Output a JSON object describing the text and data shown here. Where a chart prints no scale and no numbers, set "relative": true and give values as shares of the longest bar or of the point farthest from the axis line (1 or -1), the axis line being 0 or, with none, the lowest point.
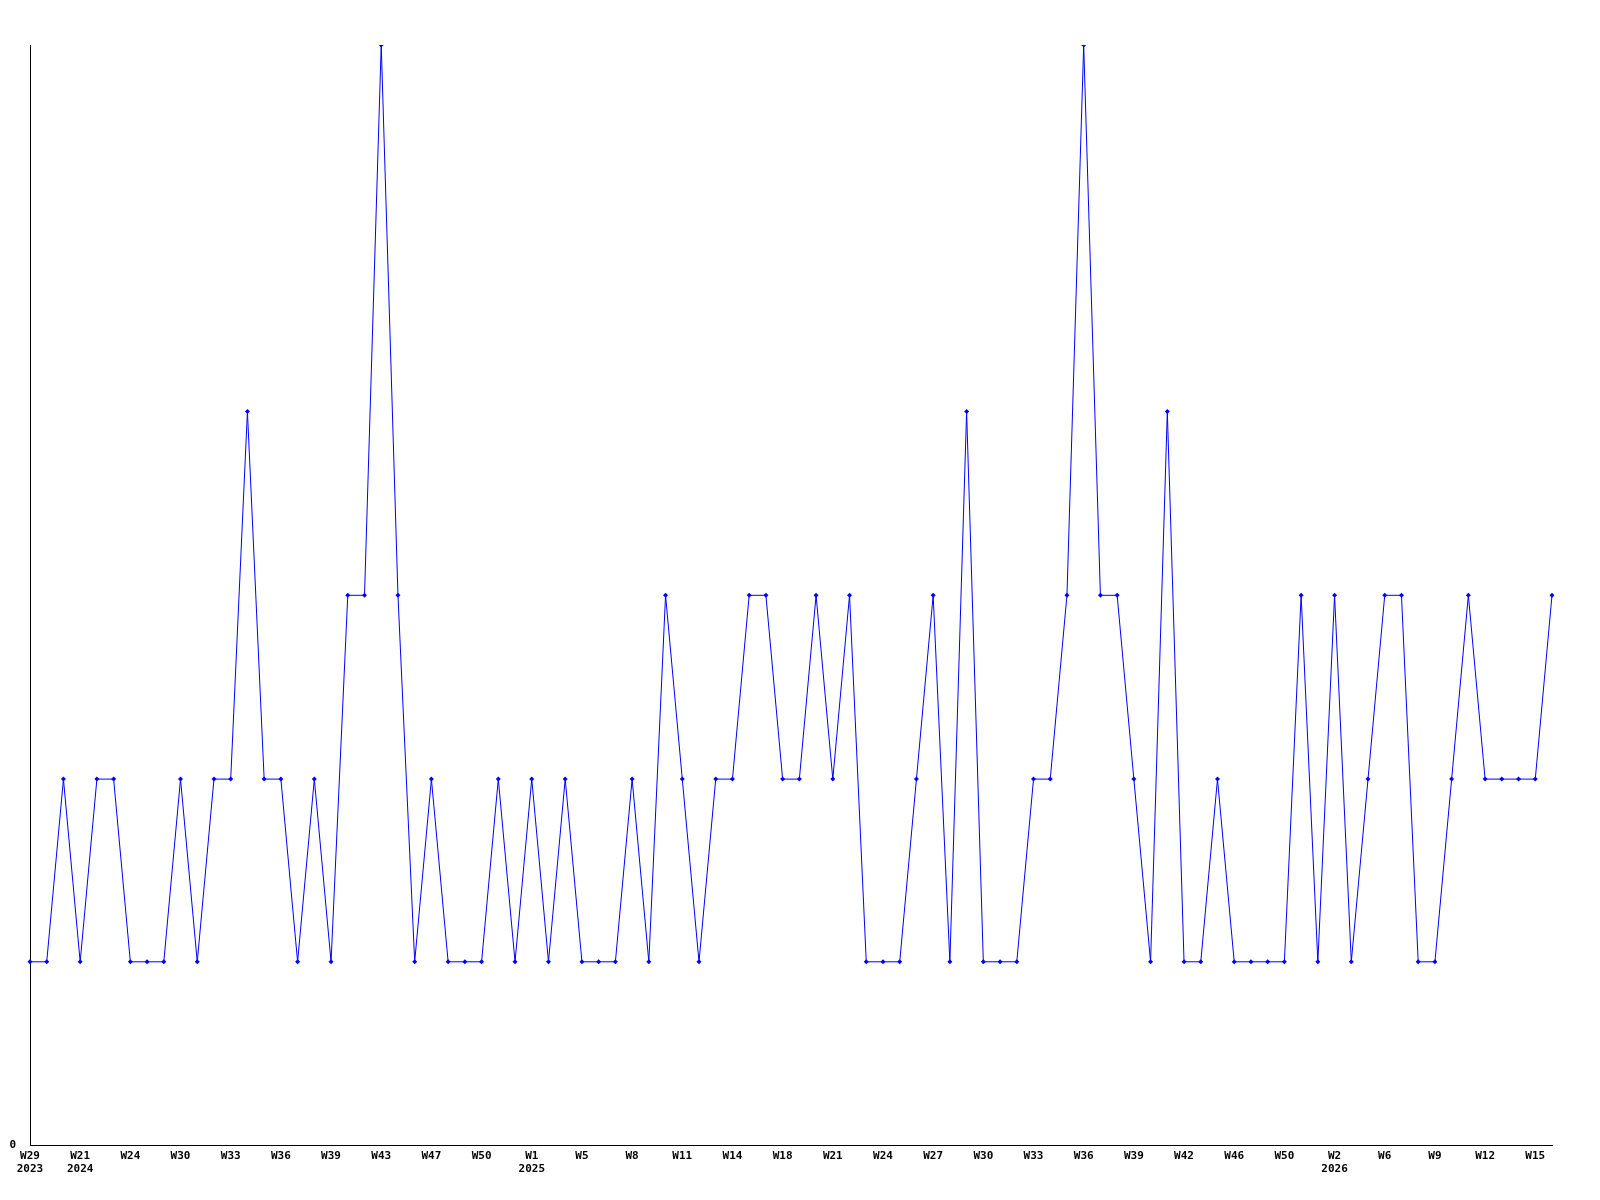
{
  "chart_data": {
    "type": "line",
    "relative": true,
    "marker": "diamond",
    "grid": false,
    "legend": false,
    "annotations": [
      "0"
    ],
    "categories": [
      "W29\n2023",
      null,
      null,
      "W21\n2024",
      null,
      null,
      "W24",
      null,
      null,
      "W30",
      null,
      null,
      "W33",
      null,
      null,
      "W36",
      null,
      null,
      "W39",
      null,
      null,
      "W43",
      null,
      null,
      "W47",
      null,
      null,
      "W50",
      null,
      null,
      "W1\n2025",
      null,
      null,
      "W5",
      null,
      null,
      "W8",
      null,
      null,
      "W11",
      null,
      null,
      "W14",
      null,
      null,
      "W18",
      null,
      null,
      "W21",
      null,
      null,
      "W24",
      null,
      null,
      "W27",
      null,
      null,
      "W30",
      null,
      null,
      "W33",
      null,
      null,
      "W36",
      null,
      null,
      "W39",
      null,
      null,
      "W42",
      null,
      null,
      "W46",
      null,
      null,
      "W50",
      null,
      null,
      "W2\n2026",
      null,
      null,
      "W6",
      null,
      null,
      "W9",
      null,
      null,
      "W12",
      null,
      null,
      "W15",
      null
    ],
    "series": [
      {
        "color": "#0000ff",
        "values": [
          0.167,
          0.167,
          0.333,
          0.167,
          0.333,
          0.333,
          0.167,
          0.167,
          0.167,
          0.333,
          0.167,
          0.333,
          0.333,
          0.667,
          0.333,
          0.333,
          0.167,
          0.333,
          0.167,
          0.5,
          0.5,
          1,
          0.5,
          0.167,
          0.333,
          0.167,
          0.167,
          0.167,
          0.333,
          0.167,
          0.333,
          0.167,
          0.333,
          0.167,
          0.167,
          0.167,
          0.333,
          0.167,
          0.5,
          0.333,
          0.167,
          0.333,
          0.333,
          0.5,
          0.5,
          0.333,
          0.333,
          0.5,
          0.333,
          0.5,
          0.167,
          0.167,
          0.167,
          0.333,
          0.5,
          0.167,
          0.667,
          0.167,
          0.167,
          0.167,
          0.333,
          0.333,
          0.5,
          1,
          0.5,
          0.5,
          0.333,
          0.167,
          0.667,
          0.167,
          0.167,
          0.333,
          0.167,
          0.167,
          0.167,
          0.167,
          0.5,
          0.167,
          0.5,
          0.167,
          0.333,
          0.5,
          0.5,
          0.167,
          0.167,
          0.333,
          0.5,
          0.333,
          0.333,
          0.333,
          0.333,
          0.5
        ]
      }
    ]
  }
}
